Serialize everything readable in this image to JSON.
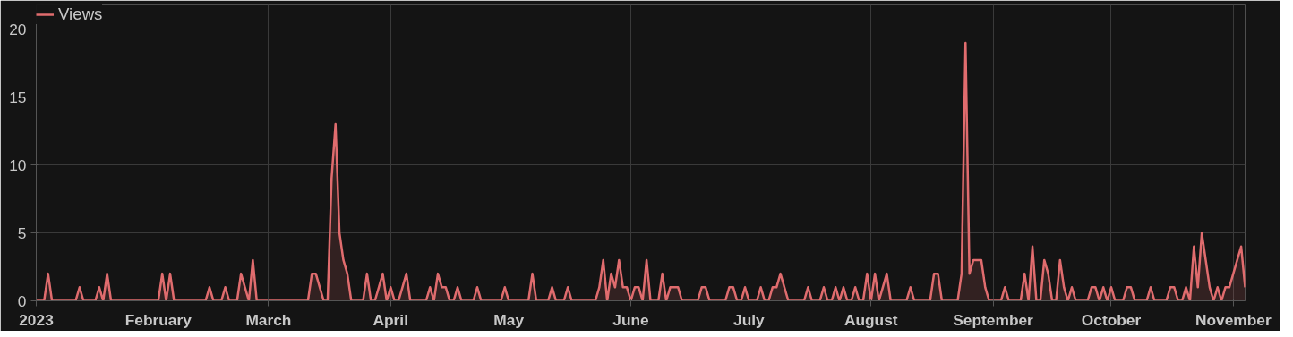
{
  "chart_data": {
    "type": "area",
    "legend": "top left",
    "grid": true,
    "marker": "none",
    "line_style": "solid",
    "ylim": [
      0,
      21.8
    ],
    "yticks": [
      0,
      5,
      10,
      15,
      20
    ],
    "xlim": [
      "2023-01-01",
      "2023-11-04"
    ],
    "xticks": [
      {
        "value": "2023-01-01",
        "label": "2023"
      },
      {
        "value": "2023-02-01",
        "label": "February"
      },
      {
        "value": "2023-03-01",
        "label": "March"
      },
      {
        "value": "2023-04-01",
        "label": "April"
      },
      {
        "value": "2023-05-01",
        "label": "May"
      },
      {
        "value": "2023-06-01",
        "label": "June"
      },
      {
        "value": "2023-07-01",
        "label": "July"
      },
      {
        "value": "2023-08-01",
        "label": "August"
      },
      {
        "value": "2023-09-01",
        "label": "September"
      },
      {
        "value": "2023-10-01",
        "label": "October"
      },
      {
        "value": "2023-11-01",
        "label": "November"
      }
    ],
    "x": [
      "2023-01-01",
      "2023-01-02",
      "2023-01-03",
      "2023-01-04",
      "2023-01-05",
      "2023-01-06",
      "2023-01-07",
      "2023-01-08",
      "2023-01-09",
      "2023-01-10",
      "2023-01-11",
      "2023-01-12",
      "2023-01-13",
      "2023-01-14",
      "2023-01-15",
      "2023-01-16",
      "2023-01-17",
      "2023-01-18",
      "2023-01-19",
      "2023-01-20",
      "2023-01-21",
      "2023-01-22",
      "2023-01-23",
      "2023-01-24",
      "2023-01-25",
      "2023-01-26",
      "2023-01-27",
      "2023-01-28",
      "2023-01-29",
      "2023-01-30",
      "2023-01-31",
      "2023-02-01",
      "2023-02-02",
      "2023-02-03",
      "2023-02-04",
      "2023-02-05",
      "2023-02-06",
      "2023-02-07",
      "2023-02-08",
      "2023-02-09",
      "2023-02-10",
      "2023-02-11",
      "2023-02-12",
      "2023-02-13",
      "2023-02-14",
      "2023-02-15",
      "2023-02-16",
      "2023-02-17",
      "2023-02-18",
      "2023-02-19",
      "2023-02-20",
      "2023-02-21",
      "2023-02-22",
      "2023-02-23",
      "2023-02-24",
      "2023-02-25",
      "2023-02-26",
      "2023-02-27",
      "2023-02-28",
      "2023-03-01",
      "2023-03-02",
      "2023-03-03",
      "2023-03-04",
      "2023-03-05",
      "2023-03-06",
      "2023-03-07",
      "2023-03-08",
      "2023-03-09",
      "2023-03-10",
      "2023-03-11",
      "2023-03-12",
      "2023-03-13",
      "2023-03-14",
      "2023-03-15",
      "2023-03-16",
      "2023-03-17",
      "2023-03-18",
      "2023-03-19",
      "2023-03-20",
      "2023-03-21",
      "2023-03-22",
      "2023-03-23",
      "2023-03-24",
      "2023-03-25",
      "2023-03-26",
      "2023-03-27",
      "2023-03-28",
      "2023-03-29",
      "2023-03-30",
      "2023-03-31",
      "2023-04-01",
      "2023-04-02",
      "2023-04-03",
      "2023-04-04",
      "2023-04-05",
      "2023-04-06",
      "2023-04-07",
      "2023-04-08",
      "2023-04-09",
      "2023-04-10",
      "2023-04-11",
      "2023-04-12",
      "2023-04-13",
      "2023-04-14",
      "2023-04-15",
      "2023-04-16",
      "2023-04-17",
      "2023-04-18",
      "2023-04-19",
      "2023-04-20",
      "2023-04-21",
      "2023-04-22",
      "2023-04-23",
      "2023-04-24",
      "2023-04-25",
      "2023-04-26",
      "2023-04-27",
      "2023-04-28",
      "2023-04-29",
      "2023-04-30",
      "2023-05-01",
      "2023-05-02",
      "2023-05-03",
      "2023-05-04",
      "2023-05-05",
      "2023-05-06",
      "2023-05-07",
      "2023-05-08",
      "2023-05-09",
      "2023-05-10",
      "2023-05-11",
      "2023-05-12",
      "2023-05-13",
      "2023-05-14",
      "2023-05-15",
      "2023-05-16",
      "2023-05-17",
      "2023-05-18",
      "2023-05-19",
      "2023-05-20",
      "2023-05-21",
      "2023-05-22",
      "2023-05-23",
      "2023-05-24",
      "2023-05-25",
      "2023-05-26",
      "2023-05-27",
      "2023-05-28",
      "2023-05-29",
      "2023-05-30",
      "2023-05-31",
      "2023-06-01",
      "2023-06-02",
      "2023-06-03",
      "2023-06-04",
      "2023-06-05",
      "2023-06-06",
      "2023-06-07",
      "2023-06-08",
      "2023-06-09",
      "2023-06-10",
      "2023-06-11",
      "2023-06-12",
      "2023-06-13",
      "2023-06-14",
      "2023-06-15",
      "2023-06-16",
      "2023-06-17",
      "2023-06-18",
      "2023-06-19",
      "2023-06-20",
      "2023-06-21",
      "2023-06-22",
      "2023-06-23",
      "2023-06-24",
      "2023-06-25",
      "2023-06-26",
      "2023-06-27",
      "2023-06-28",
      "2023-06-29",
      "2023-06-30",
      "2023-07-01",
      "2023-07-02",
      "2023-07-03",
      "2023-07-04",
      "2023-07-05",
      "2023-07-06",
      "2023-07-07",
      "2023-07-08",
      "2023-07-09",
      "2023-07-10",
      "2023-07-11",
      "2023-07-12",
      "2023-07-13",
      "2023-07-14",
      "2023-07-15",
      "2023-07-16",
      "2023-07-17",
      "2023-07-18",
      "2023-07-19",
      "2023-07-20",
      "2023-07-21",
      "2023-07-22",
      "2023-07-23",
      "2023-07-24",
      "2023-07-25",
      "2023-07-26",
      "2023-07-27",
      "2023-07-28",
      "2023-07-29",
      "2023-07-30",
      "2023-07-31",
      "2023-08-01",
      "2023-08-02",
      "2023-08-03",
      "2023-08-04",
      "2023-08-05",
      "2023-08-06",
      "2023-08-07",
      "2023-08-08",
      "2023-08-09",
      "2023-08-10",
      "2023-08-11",
      "2023-08-12",
      "2023-08-13",
      "2023-08-14",
      "2023-08-15",
      "2023-08-16",
      "2023-08-17",
      "2023-08-18",
      "2023-08-19",
      "2023-08-20",
      "2023-08-21",
      "2023-08-22",
      "2023-08-23",
      "2023-08-24",
      "2023-08-25",
      "2023-08-26",
      "2023-08-27",
      "2023-08-28",
      "2023-08-29",
      "2023-08-30",
      "2023-08-31",
      "2023-09-01",
      "2023-09-02",
      "2023-09-03",
      "2023-09-04",
      "2023-09-05",
      "2023-09-06",
      "2023-09-07",
      "2023-09-08",
      "2023-09-09",
      "2023-09-10",
      "2023-09-11",
      "2023-09-12",
      "2023-09-13",
      "2023-09-14",
      "2023-09-15",
      "2023-09-16",
      "2023-09-17",
      "2023-09-18",
      "2023-09-19",
      "2023-09-20",
      "2023-09-21",
      "2023-09-22",
      "2023-09-23",
      "2023-09-24",
      "2023-09-25",
      "2023-09-26",
      "2023-09-27",
      "2023-09-28",
      "2023-09-29",
      "2023-09-30",
      "2023-10-01",
      "2023-10-02",
      "2023-10-03",
      "2023-10-04",
      "2023-10-05",
      "2023-10-06",
      "2023-10-07",
      "2023-10-08",
      "2023-10-09",
      "2023-10-10",
      "2023-10-11",
      "2023-10-12",
      "2023-10-13",
      "2023-10-14",
      "2023-10-15",
      "2023-10-16",
      "2023-10-17",
      "2023-10-18",
      "2023-10-19",
      "2023-10-20",
      "2023-10-21",
      "2023-10-22",
      "2023-10-23",
      "2023-10-24",
      "2023-10-25",
      "2023-10-26",
      "2023-10-27",
      "2023-10-28",
      "2023-10-29",
      "2023-10-30",
      "2023-10-31",
      "2023-11-01",
      "2023-11-02",
      "2023-11-03",
      "2023-11-04"
    ],
    "series": [
      {
        "name": "Views",
        "color": "#e06c6e",
        "values": [
          0,
          0,
          0,
          2,
          0,
          0,
          0,
          0,
          0,
          0,
          0,
          1,
          0,
          0,
          0,
          0,
          1,
          0,
          2,
          0,
          0,
          0,
          0,
          0,
          0,
          0,
          0,
          0,
          0,
          0,
          0,
          0,
          2,
          0,
          2,
          0,
          0,
          0,
          0,
          0,
          0,
          0,
          0,
          0,
          1,
          0,
          0,
          0,
          1,
          0,
          0,
          0,
          2,
          1,
          0,
          3,
          0,
          0,
          0,
          0,
          0,
          0,
          0,
          0,
          0,
          0,
          0,
          0,
          0,
          0,
          2,
          2,
          1,
          0,
          0,
          9,
          13,
          5,
          3,
          2,
          0,
          0,
          0,
          0,
          2,
          0,
          0,
          1,
          2,
          0,
          1,
          0,
          0,
          1,
          2,
          0,
          0,
          0,
          0,
          0,
          1,
          0,
          2,
          1,
          1,
          0,
          0,
          1,
          0,
          0,
          0,
          0,
          1,
          0,
          0,
          0,
          0,
          0,
          0,
          1,
          0,
          0,
          0,
          0,
          0,
          0,
          2,
          0,
          0,
          0,
          0,
          1,
          0,
          0,
          0,
          1,
          0,
          0,
          0,
          0,
          0,
          0,
          0,
          1,
          3,
          0,
          2,
          1,
          3,
          1,
          1,
          0,
          1,
          1,
          0,
          3,
          0,
          0,
          0,
          2,
          0,
          1,
          1,
          1,
          0,
          0,
          0,
          0,
          0,
          1,
          1,
          0,
          0,
          0,
          0,
          0,
          1,
          1,
          0,
          0,
          1,
          0,
          0,
          0,
          1,
          0,
          0,
          1,
          1,
          2,
          1,
          0,
          0,
          0,
          0,
          0,
          1,
          0,
          0,
          0,
          1,
          0,
          0,
          1,
          0,
          1,
          0,
          0,
          1,
          0,
          0,
          2,
          0,
          2,
          0,
          1,
          2,
          0,
          0,
          0,
          0,
          0,
          1,
          0,
          0,
          0,
          0,
          0,
          2,
          2,
          0,
          0,
          0,
          0,
          0,
          2,
          19,
          2,
          3,
          3,
          3,
          1,
          0,
          0,
          0,
          0,
          1,
          0,
          0,
          0,
          0,
          2,
          0,
          4,
          0,
          0,
          3,
          2,
          0,
          0,
          3,
          1,
          0,
          1,
          0,
          0,
          0,
          0,
          1,
          1,
          0,
          1,
          0,
          1,
          0,
          0,
          0,
          1,
          1,
          0,
          0,
          0,
          0,
          1,
          0,
          0,
          0,
          0,
          1,
          1,
          0,
          0,
          1,
          0,
          4,
          1,
          5,
          3,
          1,
          0,
          1,
          0,
          1,
          1,
          2,
          3,
          4,
          1
        ]
      }
    ]
  }
}
